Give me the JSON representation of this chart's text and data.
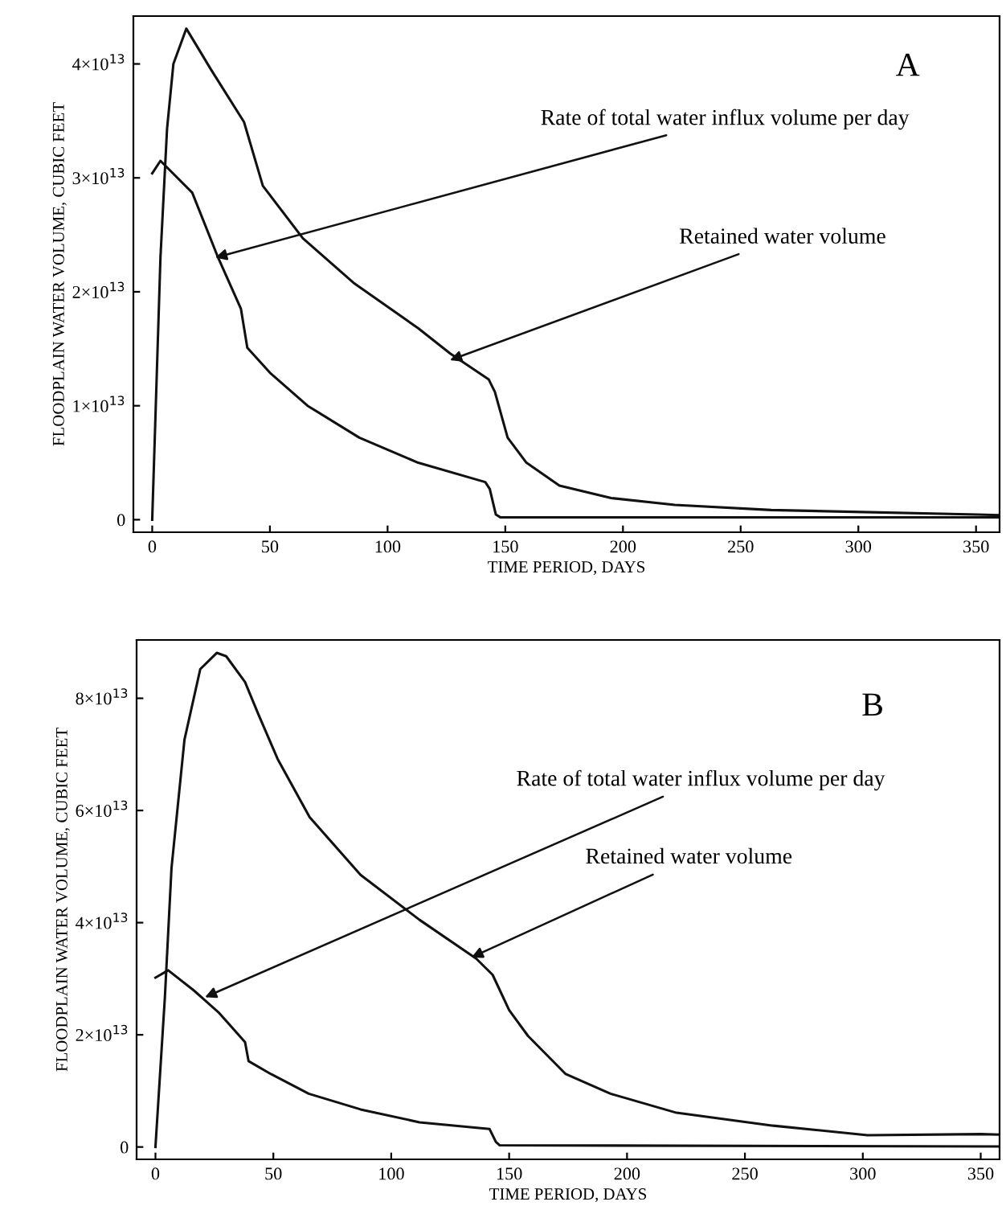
{
  "chart_data": [
    {
      "type": "line",
      "xlabel": "TIME PERIOD, DAYS",
      "ylabel": "FLOODPLAIN WATER VOLUME, CUBIC FEET",
      "xlim": [
        -8,
        360
      ],
      "ylim": [
        -1100000000000.0,
        44200000000000.0
      ],
      "xticks": [
        0,
        50,
        100,
        150,
        200,
        250,
        300,
        350
      ],
      "yticks": [
        0,
        {
          "value": 10000000000000.0,
          "label": "1×10$^{13}$"
        },
        {
          "value": 20000000000000.0,
          "label": "2×10$^{13}$"
        },
        {
          "value": 30000000000000.0,
          "label": "3×10$^{13}$"
        },
        {
          "value": 40000000000000.0,
          "label": "4×10$^{13}$"
        }
      ],
      "grid": false,
      "marker": "none",
      "line_style": "solid",
      "series": [
        {
          "color": "#111111",
          "x": [
            0,
            3.5,
            6.3,
            9,
            14.5,
            25,
            39,
            47,
            64,
            85.5,
            113,
            126.5,
            143,
            145.6,
            151,
            159,
            173,
            195,
            222,
            263,
            350.5,
            360
          ],
          "values": [
            0,
            23000000000000.0,
            34300000000000.0,
            40000000000000.0,
            43100000000000.0,
            39500000000000.0,
            34900000000000.0,
            29300000000000.0,
            24700000000000.0,
            20800000000000.0,
            16800000000000.0,
            14600000000000.0,
            12300000000000.0,
            11200000000000.0,
            7200000000000.0,
            5000000000000.0,
            3000000000000.0,
            1900000000000.0,
            1300000000000.0,
            850000000000.0,
            450000000000.0,
            400000000000.0
          ]
        },
        {
          "color": "#111111",
          "x": [
            0,
            3.5,
            17,
            28,
            37.7,
            40.4,
            50,
            66,
            88,
            113,
            141.5,
            143.4,
            146,
            148,
            360
          ],
          "values": [
            30400000000000.0,
            31500000000000.0,
            28700000000000.0,
            23000000000000.0,
            18500000000000.0,
            15100000000000.0,
            12900000000000.0,
            10000000000000.0,
            7200000000000.0,
            5000000000000.0,
            3300000000000.0,
            2700000000000.0,
            450000000000.0,
            200000000000.0,
            200000000000.0
          ]
        }
      ],
      "annotations": [
        "A",
        {
          "text": "Rate of total water influx volume per day",
          "x": 26.8,
          "y": 23000000000000.0
        },
        {
          "text": "Retained water volume",
          "x": 126.5,
          "y": 14000000000000.0
        }
      ]
    },
    {
      "type": "line",
      "xlabel": "TIME PERIOD, DAYS",
      "ylabel": "FLOODPLAIN WATER VOLUME, CUBIC FEET",
      "xlim": [
        -8,
        358
      ],
      "ylim": [
        -2200000000000.0,
        90400000000000.0
      ],
      "xticks": [
        0,
        50,
        100,
        150,
        200,
        250,
        300,
        350
      ],
      "yticks": [
        0,
        {
          "value": 20000000000000.0,
          "label": "2×10$^{13}$"
        },
        {
          "value": 40000000000000.0,
          "label": "4×10$^{13}$"
        },
        {
          "value": 60000000000000.0,
          "label": "6×10$^{13}$"
        },
        {
          "value": 80000000000000.0,
          "label": "8×10$^{13}$"
        }
      ],
      "grid": false,
      "marker": "none",
      "line_style": "solid",
      "series": [
        {
          "color": "#111111",
          "x": [
            0,
            4,
            6.8,
            12.3,
            19,
            26,
            30,
            38,
            43.6,
            51.8,
            65.4,
            87,
            112,
            136,
            143,
            150,
            158,
            174,
            193,
            221,
            262,
            302,
            350,
            358
          ],
          "values": [
            0,
            26700000000000.0,
            49700000000000.0,
            72600000000000.0,
            85200000000000.0,
            88100000000000.0,
            87500000000000.0,
            82900000000000.0,
            77200000000000.0,
            69200000000000.0,
            58800000000000.0,
            48500000000000.0,
            40500000000000.0,
            33600000000000.0,
            30700000000000.0,
            24400000000000.0,
            19800000000000.0,
            13000000000000.0,
            9500000000000.0,
            6100000000000.0,
            3800000000000.0,
            2100000000000.0,
            2300000000000.0,
            2200000000000.0
          ]
        },
        {
          "color": "#111111",
          "x": [
            0,
            5.4,
            16.3,
            27,
            38,
            39.5,
            49,
            65,
            87,
            112,
            141.7,
            144.4,
            146,
            358
          ],
          "values": [
            30200000000000.0,
            31500000000000.0,
            27900000000000.0,
            23900000000000.0,
            18700000000000.0,
            15300000000000.0,
            13000000000000.0,
            9500000000000.0,
            6700000000000.0,
            4400000000000.0,
            3200000000000.0,
            900000000000.0,
            300000000000.0,
            100000000000.0
          ]
        }
      ],
      "annotations": [
        "B",
        {
          "text": "Rate of total water influx volume per day",
          "x": 21,
          "y": 26700000000000.0
        },
        {
          "text": "Retained water volume",
          "x": 134,
          "y": 33800000000000.0
        }
      ]
    }
  ]
}
